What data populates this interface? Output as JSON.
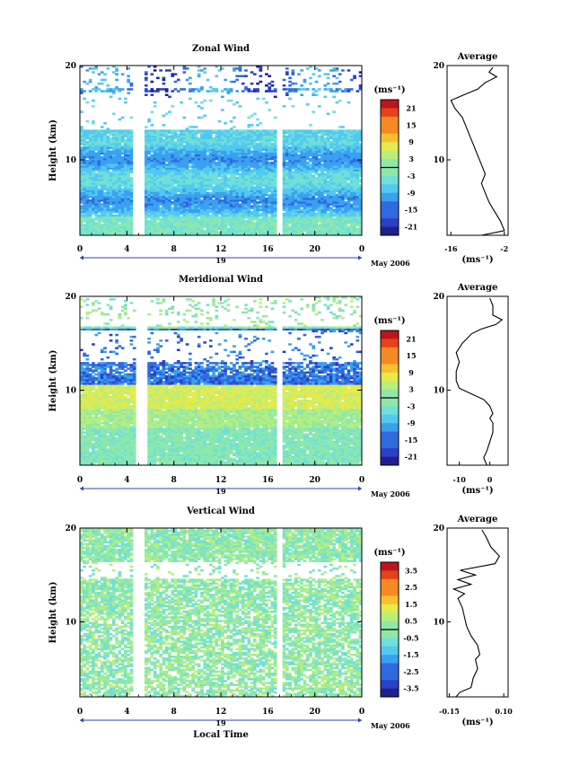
{
  "chart_data": [
    {
      "type": "heatmap",
      "title": "Zonal Wind",
      "ylabel": "Height (km)",
      "x_ticks": [
        "0",
        "4",
        "8",
        "12",
        "16",
        "20",
        "0"
      ],
      "y_ticks": [
        "20",
        "10"
      ],
      "ylim": [
        2,
        20
      ],
      "xlim": [
        0,
        24
      ],
      "date_label": "19",
      "month_label": "May 2006",
      "colorbar": {
        "unit": "(ms⁻¹)",
        "ticks": [
          "21",
          "15",
          "9",
          "3",
          "-3",
          "-9",
          "-15",
          "-21"
        ],
        "range": [
          -24,
          24
        ]
      },
      "data_gaps_hours": [
        [
          4.5,
          5.5
        ],
        [
          16.7,
          17.3
        ]
      ],
      "average_profile": {
        "title": "Average",
        "xlabel": "(ms⁻¹)",
        "x_ticks": [
          "-16",
          "-2"
        ],
        "y_ticks": [
          "20",
          "10"
        ],
        "xlim": [
          -17,
          -1
        ],
        "points": [
          [
            -8,
            2
          ],
          [
            -2,
            2.5
          ],
          [
            -3,
            3.5
          ],
          [
            -4.5,
            4.5
          ],
          [
            -6,
            5.5
          ],
          [
            -7,
            6.5
          ],
          [
            -8,
            7.5
          ],
          [
            -7,
            8.5
          ],
          [
            -8,
            9.5
          ],
          [
            -9,
            10.5
          ],
          [
            -10,
            11.5
          ],
          [
            -11,
            12.5
          ],
          [
            -12,
            13.5
          ],
          [
            -13,
            14.5
          ],
          [
            -15,
            15.5
          ],
          [
            -16,
            16.3
          ],
          [
            -12,
            17
          ],
          [
            -9,
            17.5
          ],
          [
            -7,
            18.2
          ],
          [
            -4,
            18.8
          ],
          [
            -6,
            19.3
          ],
          [
            -5,
            19.8
          ]
        ]
      }
    },
    {
      "type": "heatmap",
      "title": "Meridional Wind",
      "ylabel": "Height (km)",
      "x_ticks": [
        "0",
        "4",
        "8",
        "12",
        "16",
        "20",
        "0"
      ],
      "y_ticks": [
        "20",
        "10"
      ],
      "ylim": [
        2,
        20
      ],
      "xlim": [
        0,
        24
      ],
      "date_label": "19",
      "month_label": "May 2006",
      "colorbar": {
        "unit": "(ms⁻¹)",
        "ticks": [
          "21",
          "15",
          "9",
          "3",
          "-3",
          "-9",
          "-15",
          "-21"
        ],
        "range": [
          -24,
          24
        ]
      },
      "data_gaps_hours": [
        [
          4.7,
          5.7
        ],
        [
          16.7,
          17.3
        ]
      ],
      "average_profile": {
        "title": "Average",
        "xlabel": "(ms⁻¹)",
        "x_ticks": [
          "-10",
          "0"
        ],
        "y_ticks": [
          "20",
          "10"
        ],
        "xlim": [
          -14,
          6
        ],
        "points": [
          [
            -1,
            2
          ],
          [
            -2,
            2.8
          ],
          [
            -1,
            3.5
          ],
          [
            0,
            4.5
          ],
          [
            1,
            5.5
          ],
          [
            1,
            6.5
          ],
          [
            0,
            7
          ],
          [
            1,
            7.5
          ],
          [
            0,
            8.3
          ],
          [
            -2,
            9
          ],
          [
            -6,
            9.6
          ],
          [
            -10,
            10.2
          ],
          [
            -11,
            11
          ],
          [
            -11,
            12
          ],
          [
            -10,
            13
          ],
          [
            -11,
            14
          ],
          [
            -9,
            15
          ],
          [
            -6,
            16
          ],
          [
            -3,
            16.5
          ],
          [
            2,
            17
          ],
          [
            4,
            17.5
          ],
          [
            1,
            18
          ],
          [
            1,
            19
          ],
          [
            0,
            19.8
          ]
        ]
      }
    },
    {
      "type": "heatmap",
      "title": "Vertical Wind",
      "ylabel": "Height (km)",
      "xlabel": "Local Time",
      "x_ticks": [
        "0",
        "4",
        "8",
        "12",
        "16",
        "20",
        "0"
      ],
      "y_ticks": [
        "20",
        "10"
      ],
      "ylim": [
        2,
        20
      ],
      "xlim": [
        0,
        24
      ],
      "date_label": "19",
      "month_label": "May 2006",
      "colorbar": {
        "unit": "(ms⁻¹)",
        "ticks": [
          "3.5",
          "2.5",
          "1.5",
          "0.5",
          "-0.5",
          "-1.5",
          "-2.5",
          "-3.5"
        ],
        "range": [
          -4,
          4
        ]
      },
      "data_gaps_hours": [
        [
          4.5,
          5.5
        ],
        [
          16.7,
          17.3
        ]
      ],
      "average_profile": {
        "title": "Average",
        "xlabel": "(ms⁻¹)",
        "x_ticks": [
          "-0.15",
          "0.10"
        ],
        "y_ticks": [
          "20",
          "10"
        ],
        "xlim": [
          -0.16,
          0.12
        ],
        "points": [
          [
            -0.12,
            2
          ],
          [
            -0.1,
            2.5
          ],
          [
            -0.05,
            3
          ],
          [
            -0.04,
            4
          ],
          [
            -0.02,
            5
          ],
          [
            -0.03,
            6
          ],
          [
            -0.01,
            6.5
          ],
          [
            -0.02,
            7.5
          ],
          [
            -0.05,
            8.5
          ],
          [
            -0.07,
            9.5
          ],
          [
            -0.08,
            10.5
          ],
          [
            -0.09,
            11.5
          ],
          [
            -0.11,
            12.5
          ],
          [
            -0.08,
            13
          ],
          [
            -0.13,
            13.5
          ],
          [
            -0.05,
            14
          ],
          [
            -0.11,
            14.5
          ],
          [
            -0.03,
            15
          ],
          [
            -0.1,
            15.5
          ],
          [
            0.06,
            16.2
          ],
          [
            0.08,
            17
          ],
          [
            0.04,
            18
          ],
          [
            0.02,
            19
          ],
          [
            0.0,
            19.8
          ]
        ]
      }
    }
  ]
}
